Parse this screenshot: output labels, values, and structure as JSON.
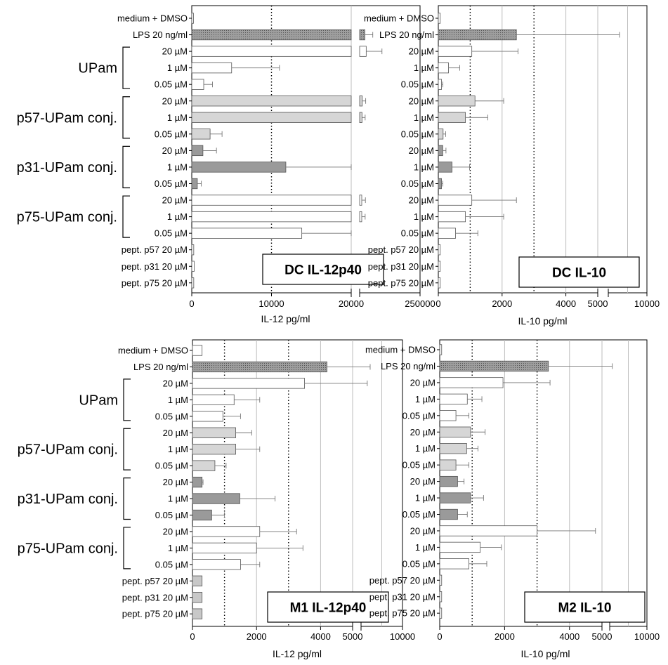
{
  "rows": [
    "medium + DMSO",
    "LPS 20 ng/ml",
    "20 µM",
    "1 µM",
    "0.05 µM",
    "20 µM",
    "1 µM",
    "0.05 µM",
    "20 µM",
    "1 µM",
    "0.05 µM",
    "20 µM",
    "1 µM",
    "0.05 µM",
    "pept. p57 20 µM",
    "pept. p31 20 µM",
    "pept. p75 20 µM"
  ],
  "groups": [
    {
      "label": "UPam",
      "first_row": 2,
      "last_row": 4
    },
    {
      "label": "p57-UPam conj.",
      "first_row": 5,
      "last_row": 7
    },
    {
      "label": "p31-UPam conj.",
      "first_row": 8,
      "last_row": 10
    },
    {
      "label": "p75-UPam conj.",
      "first_row": 11,
      "last_row": 13
    }
  ],
  "colors": {
    "control": "#ffffff",
    "lps": "#8c8c8c",
    "upam": "#ffffff",
    "p57": "#d6d6d6",
    "p31": "#9a9a9a",
    "p75": "#ffffff",
    "peptide_dc": "#ffffff",
    "peptide_m": "#c8c8c8",
    "grid": "#bdbdbd",
    "axis": "#000000"
  },
  "chart_data": [
    {
      "type": "bar",
      "orientation": "horizontal",
      "title": "DC IL-12p40",
      "xlabel": "IL-12 pg/ml",
      "axis_segments": [
        [
          0,
          20000
        ],
        [
          20000,
          250000
        ]
      ],
      "xticks": [
        0,
        10000,
        20000,
        250000
      ],
      "xtick_labels": [
        "0",
        "10000",
        "20000",
        "250000"
      ],
      "gridlines": [
        20000
      ],
      "dotted_lines": [
        10000
      ],
      "categories": [
        "medium + DMSO",
        "LPS 20 ng/ml",
        "UPam 20 µM",
        "UPam 1 µM",
        "UPam 0.05 µM",
        "p57-UPam conj. 20 µM",
        "p57-UPam conj. 1 µM",
        "p57-UPam conj. 0.05 µM",
        "p31-UPam conj. 20 µM",
        "p31-UPam conj. 1 µM",
        "p31-UPam conj. 0.05 µM",
        "p75-UPam conj. 20 µM",
        "p75-UPam conj. 1 µM",
        "p75-UPam conj. 0.05 µM",
        "pept. p57 20 µM",
        "pept. p31 20 µM",
        "pept. p75 20 µM"
      ],
      "values": [
        200,
        40000,
        45000,
        5000,
        1500,
        30000,
        29000,
        2300,
        1400,
        11800,
        700,
        28000,
        28000,
        13800,
        250,
        300,
        250
      ],
      "errors": [
        0,
        30000,
        60000,
        6000,
        1100,
        13000,
        12000,
        1500,
        1700,
        8200,
        500,
        14000,
        13000,
        6200,
        0,
        0,
        0
      ]
    },
    {
      "type": "bar",
      "orientation": "horizontal",
      "title": "DC IL-10",
      "xlabel": "IL-10 pg/ml",
      "axis_segments": [
        [
          0,
          5000
        ],
        [
          5000,
          10000
        ]
      ],
      "xticks": [
        0,
        2000,
        4000,
        5000,
        10000
      ],
      "xtick_labels": [
        "0",
        "2000",
        "4000",
        "5000",
        "10000"
      ],
      "gridlines": [
        2000,
        4000,
        5000,
        7500
      ],
      "dotted_lines": [
        1000,
        3000
      ],
      "categories": [
        "medium + DMSO",
        "LPS 20 ng/ml",
        "UPam 20 µM",
        "UPam 1 µM",
        "UPam 0.05 µM",
        "p57-UPam conj. 20 µM",
        "p57-UPam conj. 1 µM",
        "p57-UPam conj. 0.05 µM",
        "p31-UPam conj. 20 µM",
        "p31-UPam conj. 1 µM",
        "p31-UPam conj. 0.05 µM",
        "p75-UPam conj. 20 µM",
        "p75-UPam conj. 1 µM",
        "p75-UPam conj. 0.05 µM",
        "pept. p57 20 µM",
        "pept. p31 20 µM",
        "pept. p75 20 µM"
      ],
      "values": [
        60,
        2450,
        1050,
        320,
        100,
        1150,
        850,
        150,
        140,
        430,
        100,
        1050,
        850,
        540,
        60,
        60,
        60
      ],
      "errors": [
        0,
        4000,
        1450,
        350,
        40,
        900,
        700,
        80,
        100,
        550,
        40,
        1400,
        1200,
        700,
        0,
        0,
        0
      ]
    },
    {
      "type": "bar",
      "orientation": "horizontal",
      "title": "M1 IL-12p40",
      "xlabel": "IL-12 pg/ml",
      "axis_segments": [
        [
          0,
          5000
        ],
        [
          5000,
          10000
        ]
      ],
      "xticks": [
        0,
        2000,
        4000,
        5000,
        10000
      ],
      "xtick_labels": [
        "0",
        "2000",
        "4000",
        "5000",
        "10000"
      ],
      "gridlines": [
        2000,
        4000,
        5000,
        7500
      ],
      "dotted_lines": [
        1000,
        3000
      ],
      "categories": [
        "medium + DMSO",
        "LPS 20 ng/ml",
        "UPam 20 µM",
        "UPam 1 µM",
        "UPam 0.05 µM",
        "p57-UPam conj. 20 µM",
        "p57-UPam conj. 1 µM",
        "p57-UPam conj. 0.05 µM",
        "p31-UPam conj. 20 µM",
        "p31-UPam conj. 1 µM",
        "p31-UPam conj. 0.05 µM",
        "p75-UPam conj. 20 µM",
        "p75-UPam conj. 1 µM",
        "p75-UPam conj. 0.05 µM",
        "pept. p57 20 µM",
        "pept. p31 20 µM",
        "pept. p75 20 µM"
      ],
      "values": [
        300,
        4200,
        3500,
        1300,
        950,
        1350,
        1350,
        700,
        300,
        1480,
        600,
        2100,
        2000,
        1500,
        300,
        300,
        300
      ],
      "errors": [
        0,
        1900,
        2250,
        800,
        550,
        500,
        750,
        350,
        30,
        1100,
        400,
        1150,
        1450,
        600,
        0,
        0,
        0
      ]
    },
    {
      "type": "bar",
      "orientation": "horizontal",
      "title": "M2 IL-10",
      "xlabel": "IL-10 pg/ml",
      "axis_segments": [
        [
          0,
          5000
        ],
        [
          5000,
          10000
        ]
      ],
      "xticks": [
        0,
        2000,
        4000,
        5000,
        10000
      ],
      "xtick_labels": [
        "0",
        "2000",
        "4000",
        "5000",
        "10000"
      ],
      "gridlines": [
        2000,
        4000,
        5000,
        7500
      ],
      "dotted_lines": [
        1000,
        3000
      ],
      "categories": [
        "medium + DMSO",
        "LPS 20 ng/ml",
        "UPam 20 µM",
        "UPam 1 µM",
        "UPam 0.05 µM",
        "p57-UPam conj. 20 µM",
        "p57-UPam conj. 1 µM",
        "p57-UPam conj. 0.05 µM",
        "p31-UPam conj. 20 µM",
        "p31-UPam conj. 1 µM",
        "p31-UPam conj. 0.05 µM",
        "p75-UPam conj. 20 µM",
        "p75-UPam conj. 1 µM",
        "p75-UPam conj. 0.05 µM",
        "pept. p57 20 µM",
        "pept. p31 20 µM",
        "pept. p75 20 µM"
      ],
      "values": [
        60,
        3350,
        1950,
        850,
        500,
        950,
        830,
        500,
        550,
        950,
        550,
        3000,
        1250,
        900,
        60,
        60,
        60
      ],
      "errors": [
        0,
        2000,
        1450,
        450,
        400,
        450,
        350,
        400,
        200,
        400,
        300,
        1800,
        650,
        550,
        0,
        0,
        0
      ]
    }
  ]
}
